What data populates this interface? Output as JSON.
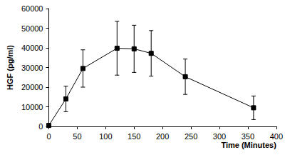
{
  "chart_data": {
    "type": "line",
    "x_label": "Time (Minutes)",
    "y_label": "HGF (pg/ml)",
    "x": [
      0,
      30,
      60,
      120,
      150,
      180,
      240,
      360
    ],
    "values": [
      500,
      14000,
      29500,
      39800,
      39500,
      37200,
      25300,
      9500
    ],
    "errors": [
      300,
      6500,
      9500,
      13700,
      12000,
      11600,
      9000,
      6000
    ],
    "color": "#000000",
    "marker": "square",
    "xlim": [
      0,
      400
    ],
    "xticks": [
      0,
      50,
      100,
      150,
      200,
      250,
      300,
      350,
      400
    ],
    "ylim": [
      0,
      60000
    ],
    "yticks": [
      0,
      10000,
      20000,
      30000,
      40000,
      50000,
      60000
    ],
    "grid": false
  }
}
